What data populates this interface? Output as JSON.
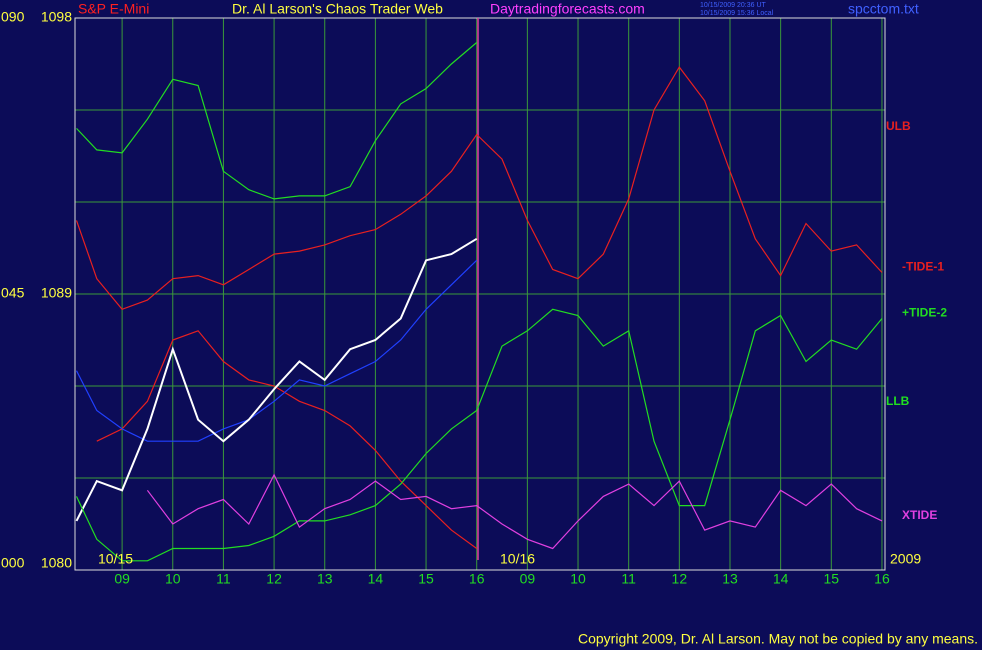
{
  "chart_data": {
    "type": "line",
    "title": "Dr. Al Larson's Chaos Trader Web",
    "site": "Daytradingforecasts.com",
    "instrument": "S&P E-Mini",
    "file": "spcctom.txt",
    "timestamps": [
      "10/15/2009 20:36 UT",
      "10/15/2009 15:36 Local"
    ],
    "day_labels": [
      "10/15",
      "10/16"
    ],
    "year": "2009",
    "copyright": "Copyright 2009, Dr. Al Larson. May not be copied by any means.",
    "annotations": [
      {
        "text": "ULB",
        "color": "#e82020"
      },
      {
        "text": "LLB",
        "color": "#20e020"
      }
    ],
    "x": [
      0.1,
      0.5,
      1,
      1.5,
      2,
      2.5,
      3,
      3.5,
      4,
      4.5,
      5,
      5.5,
      6,
      6.5,
      7,
      7.5,
      8,
      8.5,
      9,
      9.5,
      10,
      10.5,
      11,
      11.5,
      12,
      12.5,
      13,
      13.5,
      14,
      14.5,
      15,
      15.5,
      16
    ],
    "xlim": [
      0.07,
      16.06
    ],
    "xticks": [
      {
        "value": 1,
        "label": "09"
      },
      {
        "value": 2,
        "label": "10"
      },
      {
        "value": 3,
        "label": "11"
      },
      {
        "value": 4,
        "label": "12"
      },
      {
        "value": 5,
        "label": "13"
      },
      {
        "value": 6,
        "label": "14"
      },
      {
        "value": 7,
        "label": "15"
      },
      {
        "value": 8,
        "label": "16"
      },
      {
        "value": 9,
        "label": "09"
      },
      {
        "value": 10,
        "label": "10"
      },
      {
        "value": 11,
        "label": "11"
      },
      {
        "value": 12,
        "label": "12"
      },
      {
        "value": 13,
        "label": "13"
      },
      {
        "value": 14,
        "label": "14"
      },
      {
        "value": 15,
        "label": "15"
      },
      {
        "value": 16,
        "label": "16"
      }
    ],
    "ylim": [
      1080,
      1098
    ],
    "yticks": [
      1080,
      1089,
      1098
    ],
    "minor_yticks": [
      1083,
      1086,
      1092,
      1095
    ],
    "y2lim": [
      0,
      90
    ],
    "y2ticks": [
      {
        "value": 0,
        "label": "000"
      },
      {
        "value": 45,
        "label": "045"
      },
      {
        "value": 90,
        "label": "090"
      }
    ],
    "grid": true,
    "series": [
      {
        "color": "#22dd22",
        "values": [
          1094.4,
          1093.7,
          1093.6,
          1094.7,
          1096.0,
          1095.8,
          1093.0,
          1092.4,
          1092.1,
          1092.2,
          1092.2,
          1092.5,
          1094.0,
          1095.2,
          1095.7,
          1096.5,
          1097.2,
          null,
          null,
          null,
          null,
          null,
          null,
          null,
          null,
          null,
          null,
          null,
          null,
          null,
          null,
          null,
          null
        ]
      },
      {
        "color": "#e82020",
        "values": [
          null,
          1084.2,
          1084.6,
          1085.5,
          1087.5,
          1087.8,
          1086.8,
          1086.2,
          1086.0,
          1085.5,
          1085.2,
          1084.7,
          1083.9,
          1082.9,
          1082.1,
          1081.3,
          1080.7,
          null,
          null,
          null,
          null,
          null,
          null,
          null,
          null,
          null,
          null,
          null,
          null,
          null,
          null,
          null,
          null
        ]
      },
      {
        "color": "#2040ff",
        "values": [
          1086.5,
          1085.2,
          1084.6,
          1084.2,
          1084.2,
          1084.2,
          1084.6,
          1084.9,
          1085.5,
          1086.2,
          1086.0,
          1086.4,
          1086.8,
          1087.5,
          1088.5,
          1089.3,
          1090.1,
          null,
          null,
          null,
          null,
          null,
          null,
          null,
          null,
          null,
          null,
          null,
          null,
          null,
          null,
          null,
          null
        ]
      },
      {
        "color": "#ffffff",
        "values": [
          1081.6,
          1082.9,
          1082.6,
          1084.6,
          1087.2,
          1084.9,
          1084.2,
          1084.9,
          1085.9,
          1086.8,
          1086.2,
          1087.2,
          1087.5,
          1088.2,
          1090.1,
          1090.3,
          1090.8,
          null,
          null,
          null,
          null,
          null,
          null,
          null,
          null,
          null,
          null,
          null,
          null,
          null,
          null,
          null,
          null
        ]
      },
      {
        "name": "-TIDE-1",
        "color": "#e82020",
        "values": [
          1091.4,
          1089.5,
          1088.5,
          1088.8,
          1089.5,
          1089.6,
          1089.3,
          1089.8,
          1090.3,
          1090.4,
          1090.6,
          1090.9,
          1091.1,
          1091.6,
          1092.2,
          1093.0,
          1094.2,
          1093.4,
          1091.4,
          1089.8,
          1089.5,
          1090.3,
          1092.1,
          1095.0,
          1096.4,
          1095.3,
          1093.0,
          1090.8,
          1089.6,
          1091.3,
          1090.4,
          1090.6,
          1089.7
        ]
      },
      {
        "name": "+TIDE-2",
        "color": "#22dd22",
        "values": [
          1082.4,
          1081.0,
          1080.3,
          1080.3,
          1080.7,
          1080.7,
          1080.7,
          1080.8,
          1081.1,
          1081.6,
          1081.6,
          1081.8,
          1082.1,
          1082.8,
          1083.8,
          1084.6,
          1085.2,
          1087.3,
          1087.8,
          1088.5,
          1088.3,
          1087.3,
          1087.8,
          1084.2,
          1082.1,
          1082.1,
          1084.9,
          1087.8,
          1088.3,
          1086.8,
          1087.5,
          1087.2,
          1088.2
        ]
      },
      {
        "name": "XTIDE",
        "color": "#e040e0",
        "values": [
          null,
          null,
          null,
          1082.6,
          1081.5,
          1082.0,
          1082.3,
          1081.5,
          1083.1,
          1081.4,
          1082.0,
          1082.3,
          1082.9,
          1082.3,
          1082.4,
          1082.0,
          1082.1,
          1081.5,
          1081.0,
          1080.7,
          1081.6,
          1082.4,
          1082.8,
          1082.1,
          1082.9,
          1081.3,
          1081.6,
          1081.4,
          1082.6,
          1082.1,
          1082.8,
          1082.0,
          1081.6
        ]
      }
    ]
  }
}
